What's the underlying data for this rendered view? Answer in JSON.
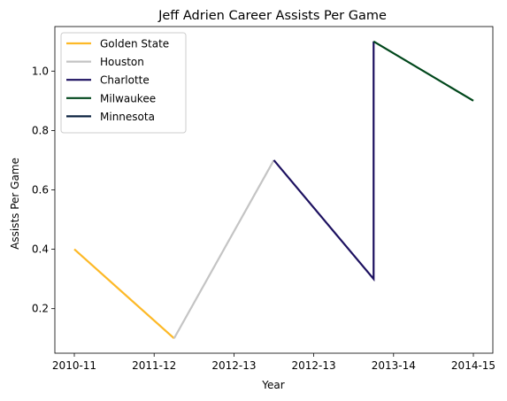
{
  "chart_data": {
    "type": "line",
    "title": "Jeff Adrien Career Assists Per Game",
    "xlabel": "Year",
    "ylabel": "Assists Per Game",
    "x_tick_labels": [
      "2010-11",
      "2011-12",
      "2012-13",
      "2012-13",
      "2013-14",
      "2014-15"
    ],
    "y_ticks": [
      0.2,
      0.4,
      0.6,
      0.8,
      1.0
    ],
    "ylim": [
      0.05,
      1.15
    ],
    "grid": false,
    "legend_position": "top-left",
    "series": [
      {
        "name": "Golden State",
        "color": "#FDB927",
        "points": [
          [
            "2010-11",
            0.4
          ],
          [
            "2011-12",
            0.1
          ]
        ]
      },
      {
        "name": "Houston",
        "color": "#C4C4C4",
        "points": [
          [
            "2011-12",
            0.1
          ],
          [
            "2012-13",
            0.7
          ]
        ]
      },
      {
        "name": "Charlotte",
        "color": "#1D1160",
        "points": [
          [
            "2012-13",
            0.7
          ],
          [
            "2013-14",
            0.3
          ],
          [
            "2013-14",
            1.1
          ]
        ]
      },
      {
        "name": "Milwaukee",
        "color": "#00471B",
        "points": [
          [
            "2013-14",
            1.1
          ],
          [
            "2014-15",
            0.9
          ]
        ]
      },
      {
        "name": "Minnesota",
        "color": "#0C2340",
        "points": []
      }
    ]
  }
}
